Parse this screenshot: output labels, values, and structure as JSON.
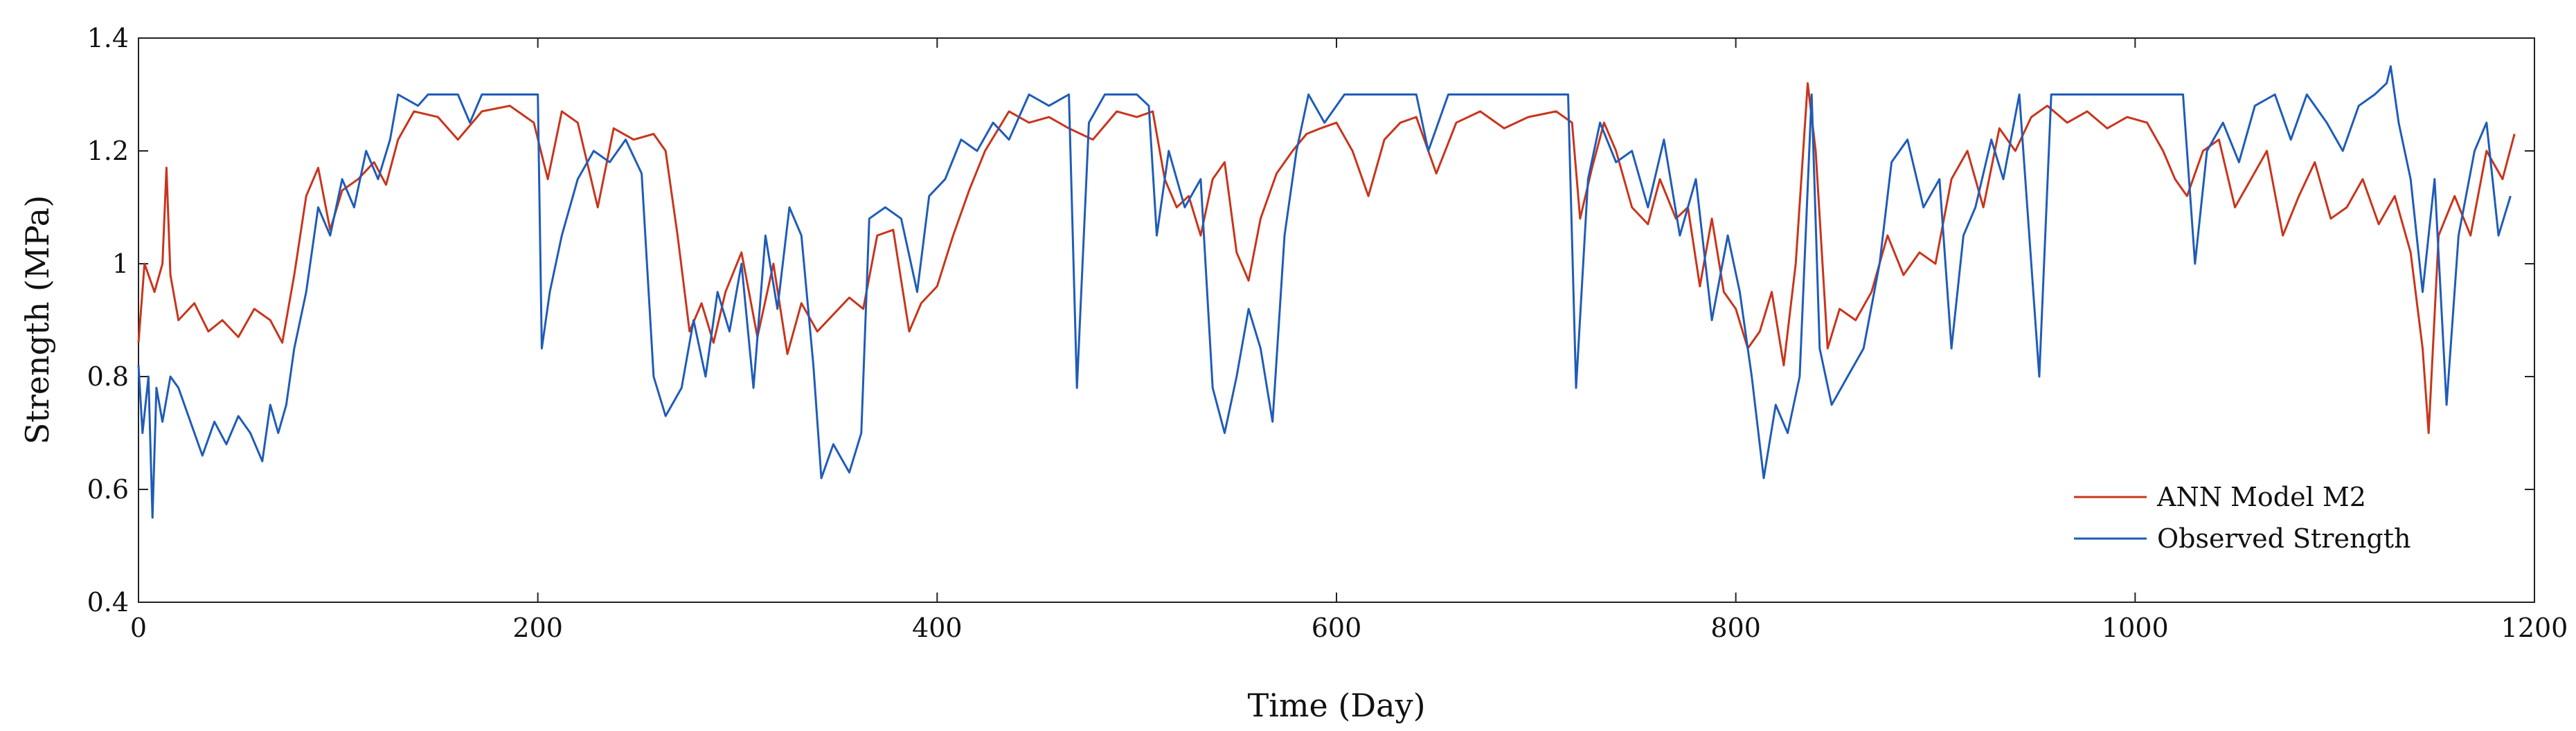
{
  "chart_data": {
    "type": "line",
    "title": "",
    "xlabel": "Time (Day)",
    "ylabel": "Strength (MPa)",
    "xlim": [
      0,
      1200
    ],
    "ylim": [
      0.4,
      1.4
    ],
    "x_ticks": [
      0,
      200,
      400,
      600,
      800,
      1000,
      1200
    ],
    "y_ticks": [
      0.4,
      0.6,
      0.8,
      1.0,
      1.2,
      1.4
    ],
    "x_tick_labels": [
      "0",
      "200",
      "400",
      "600",
      "800",
      "1000",
      "1200"
    ],
    "y_tick_labels": [
      "0.4",
      "0.6",
      "0.8",
      "1",
      "1.2",
      "1.4"
    ],
    "grid": false,
    "legend": {
      "position": "bottom-right"
    },
    "series": [
      {
        "name": "ANN Model M2",
        "color": "#c8351c",
        "points": [
          [
            0,
            0.86
          ],
          [
            3,
            1.0
          ],
          [
            8,
            0.95
          ],
          [
            12,
            1.0
          ],
          [
            14,
            1.17
          ],
          [
            16,
            0.98
          ],
          [
            20,
            0.9
          ],
          [
            28,
            0.93
          ],
          [
            35,
            0.88
          ],
          [
            42,
            0.9
          ],
          [
            50,
            0.87
          ],
          [
            58,
            0.92
          ],
          [
            66,
            0.9
          ],
          [
            72,
            0.86
          ],
          [
            78,
            0.98
          ],
          [
            84,
            1.12
          ],
          [
            90,
            1.17
          ],
          [
            96,
            1.06
          ],
          [
            102,
            1.13
          ],
          [
            110,
            1.15
          ],
          [
            118,
            1.18
          ],
          [
            124,
            1.14
          ],
          [
            130,
            1.22
          ],
          [
            138,
            1.27
          ],
          [
            150,
            1.26
          ],
          [
            160,
            1.22
          ],
          [
            172,
            1.27
          ],
          [
            186,
            1.28
          ],
          [
            198,
            1.25
          ],
          [
            205,
            1.15
          ],
          [
            212,
            1.27
          ],
          [
            220,
            1.25
          ],
          [
            230,
            1.1
          ],
          [
            238,
            1.24
          ],
          [
            248,
            1.22
          ],
          [
            258,
            1.23
          ],
          [
            264,
            1.2
          ],
          [
            270,
            1.05
          ],
          [
            276,
            0.88
          ],
          [
            282,
            0.93
          ],
          [
            288,
            0.86
          ],
          [
            294,
            0.95
          ],
          [
            302,
            1.02
          ],
          [
            310,
            0.87
          ],
          [
            318,
            1.0
          ],
          [
            325,
            0.84
          ],
          [
            332,
            0.93
          ],
          [
            340,
            0.88
          ],
          [
            348,
            0.91
          ],
          [
            356,
            0.94
          ],
          [
            363,
            0.92
          ],
          [
            370,
            1.05
          ],
          [
            378,
            1.06
          ],
          [
            386,
            0.88
          ],
          [
            392,
            0.93
          ],
          [
            400,
            0.96
          ],
          [
            408,
            1.05
          ],
          [
            416,
            1.13
          ],
          [
            424,
            1.2
          ],
          [
            436,
            1.27
          ],
          [
            446,
            1.25
          ],
          [
            456,
            1.26
          ],
          [
            466,
            1.24
          ],
          [
            478,
            1.22
          ],
          [
            490,
            1.27
          ],
          [
            500,
            1.26
          ],
          [
            508,
            1.27
          ],
          [
            514,
            1.15
          ],
          [
            520,
            1.1
          ],
          [
            526,
            1.12
          ],
          [
            532,
            1.05
          ],
          [
            538,
            1.15
          ],
          [
            544,
            1.18
          ],
          [
            550,
            1.02
          ],
          [
            556,
            0.97
          ],
          [
            562,
            1.08
          ],
          [
            570,
            1.16
          ],
          [
            578,
            1.2
          ],
          [
            585,
            1.23
          ],
          [
            592,
            1.24
          ],
          [
            600,
            1.25
          ],
          [
            608,
            1.2
          ],
          [
            616,
            1.12
          ],
          [
            624,
            1.22
          ],
          [
            632,
            1.25
          ],
          [
            640,
            1.26
          ],
          [
            650,
            1.16
          ],
          [
            660,
            1.25
          ],
          [
            672,
            1.27
          ],
          [
            684,
            1.24
          ],
          [
            696,
            1.26
          ],
          [
            710,
            1.27
          ],
          [
            718,
            1.25
          ],
          [
            722,
            1.08
          ],
          [
            728,
            1.17
          ],
          [
            734,
            1.25
          ],
          [
            740,
            1.2
          ],
          [
            748,
            1.1
          ],
          [
            756,
            1.07
          ],
          [
            762,
            1.15
          ],
          [
            770,
            1.08
          ],
          [
            776,
            1.1
          ],
          [
            782,
            0.96
          ],
          [
            788,
            1.08
          ],
          [
            794,
            0.95
          ],
          [
            800,
            0.92
          ],
          [
            806,
            0.85
          ],
          [
            812,
            0.88
          ],
          [
            818,
            0.95
          ],
          [
            824,
            0.82
          ],
          [
            830,
            1.0
          ],
          [
            836,
            1.32
          ],
          [
            840,
            1.2
          ],
          [
            846,
            0.85
          ],
          [
            852,
            0.92
          ],
          [
            860,
            0.9
          ],
          [
            868,
            0.95
          ],
          [
            876,
            1.05
          ],
          [
            884,
            0.98
          ],
          [
            892,
            1.02
          ],
          [
            900,
            1.0
          ],
          [
            908,
            1.15
          ],
          [
            916,
            1.2
          ],
          [
            924,
            1.1
          ],
          [
            932,
            1.24
          ],
          [
            940,
            1.2
          ],
          [
            948,
            1.26
          ],
          [
            956,
            1.28
          ],
          [
            966,
            1.25
          ],
          [
            976,
            1.27
          ],
          [
            986,
            1.24
          ],
          [
            996,
            1.26
          ],
          [
            1006,
            1.25
          ],
          [
            1014,
            1.2
          ],
          [
            1020,
            1.15
          ],
          [
            1026,
            1.12
          ],
          [
            1034,
            1.2
          ],
          [
            1042,
            1.22
          ],
          [
            1050,
            1.1
          ],
          [
            1058,
            1.15
          ],
          [
            1066,
            1.2
          ],
          [
            1074,
            1.05
          ],
          [
            1082,
            1.12
          ],
          [
            1090,
            1.18
          ],
          [
            1098,
            1.08
          ],
          [
            1106,
            1.1
          ],
          [
            1114,
            1.15
          ],
          [
            1122,
            1.07
          ],
          [
            1130,
            1.12
          ],
          [
            1138,
            1.02
          ],
          [
            1144,
            0.85
          ],
          [
            1147,
            0.7
          ],
          [
            1152,
            1.05
          ],
          [
            1160,
            1.12
          ],
          [
            1168,
            1.05
          ],
          [
            1176,
            1.2
          ],
          [
            1184,
            1.15
          ],
          [
            1190,
            1.23
          ]
        ]
      },
      {
        "name": "Observed Strength",
        "color": "#1f5cb8",
        "points": [
          [
            0,
            0.82
          ],
          [
            2,
            0.7
          ],
          [
            5,
            0.8
          ],
          [
            7,
            0.55
          ],
          [
            9,
            0.78
          ],
          [
            12,
            0.72
          ],
          [
            16,
            0.8
          ],
          [
            20,
            0.78
          ],
          [
            26,
            0.72
          ],
          [
            32,
            0.66
          ],
          [
            38,
            0.72
          ],
          [
            44,
            0.68
          ],
          [
            50,
            0.73
          ],
          [
            56,
            0.7
          ],
          [
            62,
            0.65
          ],
          [
            66,
            0.75
          ],
          [
            70,
            0.7
          ],
          [
            74,
            0.75
          ],
          [
            78,
            0.85
          ],
          [
            84,
            0.95
          ],
          [
            90,
            1.1
          ],
          [
            96,
            1.05
          ],
          [
            102,
            1.15
          ],
          [
            108,
            1.1
          ],
          [
            114,
            1.2
          ],
          [
            120,
            1.15
          ],
          [
            126,
            1.22
          ],
          [
            130,
            1.3
          ],
          [
            140,
            1.28
          ],
          [
            145,
            1.3
          ],
          [
            160,
            1.3
          ],
          [
            166,
            1.25
          ],
          [
            172,
            1.3
          ],
          [
            200,
            1.3
          ],
          [
            202,
            0.85
          ],
          [
            206,
            0.95
          ],
          [
            212,
            1.05
          ],
          [
            220,
            1.15
          ],
          [
            228,
            1.2
          ],
          [
            236,
            1.18
          ],
          [
            244,
            1.22
          ],
          [
            252,
            1.16
          ],
          [
            258,
            0.8
          ],
          [
            264,
            0.73
          ],
          [
            272,
            0.78
          ],
          [
            278,
            0.9
          ],
          [
            284,
            0.8
          ],
          [
            290,
            0.95
          ],
          [
            296,
            0.88
          ],
          [
            302,
            1.0
          ],
          [
            308,
            0.78
          ],
          [
            314,
            1.05
          ],
          [
            320,
            0.92
          ],
          [
            326,
            1.1
          ],
          [
            332,
            1.05
          ],
          [
            338,
            0.82
          ],
          [
            342,
            0.62
          ],
          [
            348,
            0.68
          ],
          [
            356,
            0.63
          ],
          [
            362,
            0.7
          ],
          [
            366,
            1.08
          ],
          [
            374,
            1.1
          ],
          [
            382,
            1.08
          ],
          [
            390,
            0.95
          ],
          [
            396,
            1.12
          ],
          [
            404,
            1.15
          ],
          [
            412,
            1.22
          ],
          [
            420,
            1.2
          ],
          [
            428,
            1.25
          ],
          [
            436,
            1.22
          ],
          [
            446,
            1.3
          ],
          [
            456,
            1.28
          ],
          [
            466,
            1.3
          ],
          [
            470,
            0.78
          ],
          [
            476,
            1.25
          ],
          [
            484,
            1.3
          ],
          [
            500,
            1.3
          ],
          [
            506,
            1.28
          ],
          [
            510,
            1.05
          ],
          [
            516,
            1.2
          ],
          [
            524,
            1.1
          ],
          [
            532,
            1.15
          ],
          [
            538,
            0.78
          ],
          [
            544,
            0.7
          ],
          [
            550,
            0.8
          ],
          [
            556,
            0.92
          ],
          [
            562,
            0.85
          ],
          [
            568,
            0.72
          ],
          [
            574,
            1.05
          ],
          [
            580,
            1.2
          ],
          [
            586,
            1.3
          ],
          [
            594,
            1.25
          ],
          [
            604,
            1.3
          ],
          [
            640,
            1.3
          ],
          [
            646,
            1.2
          ],
          [
            656,
            1.3
          ],
          [
            716,
            1.3
          ],
          [
            720,
            0.78
          ],
          [
            726,
            1.15
          ],
          [
            732,
            1.25
          ],
          [
            740,
            1.18
          ],
          [
            748,
            1.2
          ],
          [
            756,
            1.1
          ],
          [
            764,
            1.22
          ],
          [
            772,
            1.05
          ],
          [
            780,
            1.15
          ],
          [
            788,
            0.9
          ],
          [
            796,
            1.05
          ],
          [
            802,
            0.95
          ],
          [
            808,
            0.8
          ],
          [
            814,
            0.62
          ],
          [
            820,
            0.75
          ],
          [
            826,
            0.7
          ],
          [
            832,
            0.8
          ],
          [
            838,
            1.3
          ],
          [
            842,
            0.85
          ],
          [
            848,
            0.75
          ],
          [
            856,
            0.8
          ],
          [
            864,
            0.85
          ],
          [
            872,
            1.0
          ],
          [
            878,
            1.18
          ],
          [
            886,
            1.22
          ],
          [
            894,
            1.1
          ],
          [
            902,
            1.15
          ],
          [
            908,
            0.85
          ],
          [
            914,
            1.05
          ],
          [
            920,
            1.1
          ],
          [
            928,
            1.22
          ],
          [
            934,
            1.15
          ],
          [
            942,
            1.3
          ],
          [
            952,
            0.8
          ],
          [
            958,
            1.3
          ],
          [
            1024,
            1.3
          ],
          [
            1030,
            1.0
          ],
          [
            1036,
            1.2
          ],
          [
            1044,
            1.25
          ],
          [
            1052,
            1.18
          ],
          [
            1060,
            1.28
          ],
          [
            1070,
            1.3
          ],
          [
            1078,
            1.22
          ],
          [
            1086,
            1.3
          ],
          [
            1096,
            1.25
          ],
          [
            1104,
            1.2
          ],
          [
            1112,
            1.28
          ],
          [
            1120,
            1.3
          ],
          [
            1126,
            1.32
          ],
          [
            1128,
            1.35
          ],
          [
            1132,
            1.25
          ],
          [
            1138,
            1.15
          ],
          [
            1144,
            0.95
          ],
          [
            1150,
            1.15
          ],
          [
            1156,
            0.75
          ],
          [
            1162,
            1.05
          ],
          [
            1170,
            1.2
          ],
          [
            1176,
            1.25
          ],
          [
            1182,
            1.05
          ],
          [
            1188,
            1.12
          ]
        ]
      }
    ]
  }
}
